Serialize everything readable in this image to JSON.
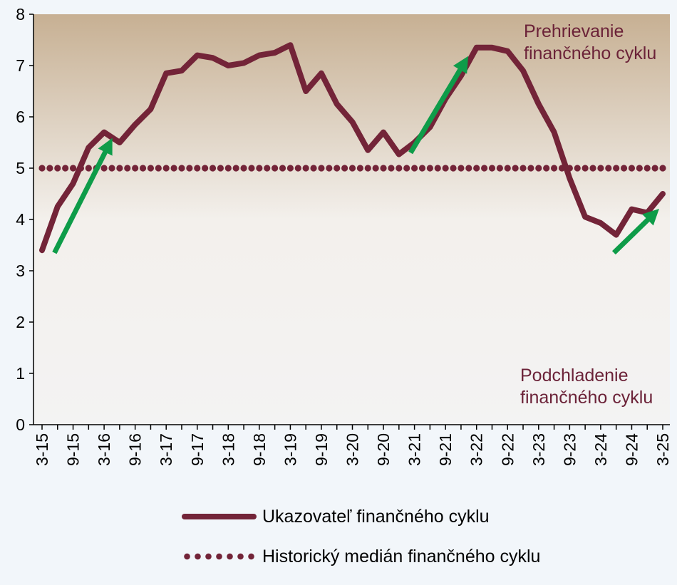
{
  "chart_data": {
    "type": "line",
    "categories": [
      "3-15",
      "6-15",
      "9-15",
      "12-15",
      "3-16",
      "6-16",
      "9-16",
      "12-16",
      "3-17",
      "6-17",
      "9-17",
      "12-17",
      "3-18",
      "6-18",
      "9-18",
      "12-18",
      "3-19",
      "6-19",
      "9-19",
      "12-19",
      "3-20",
      "6-20",
      "9-20",
      "12-20",
      "3-21",
      "6-21",
      "9-21",
      "12-21",
      "3-22",
      "6-22",
      "9-22",
      "12-22",
      "3-23",
      "6-23",
      "9-23",
      "12-23",
      "3-24",
      "6-24",
      "9-24",
      "12-24",
      "3-25"
    ],
    "x_tick_labels": [
      "3-15",
      "9-15",
      "3-16",
      "9-16",
      "3-17",
      "9-17",
      "3-18",
      "9-18",
      "3-19",
      "9-19",
      "3-20",
      "9-20",
      "3-21",
      "9-21",
      "3-22",
      "9-22",
      "3-23",
      "9-23",
      "3-24",
      "9-24",
      "3-25"
    ],
    "ylim": [
      0,
      8
    ],
    "y_ticks": [
      "0",
      "1",
      "2",
      "3",
      "4",
      "5",
      "6",
      "7",
      "8"
    ],
    "grid": false,
    "series": [
      {
        "name": "Ukazovateľ finančného cyklu",
        "style": "solid",
        "color": "#732438",
        "values": [
          3.4,
          4.25,
          4.7,
          5.4,
          5.7,
          5.5,
          5.85,
          6.15,
          6.85,
          6.9,
          7.2,
          7.15,
          7.0,
          7.05,
          7.2,
          7.25,
          7.4,
          6.5,
          6.85,
          6.25,
          5.9,
          5.35,
          5.7,
          5.27,
          5.5,
          5.8,
          6.35,
          6.8,
          7.35,
          7.35,
          7.28,
          6.9,
          6.25,
          5.7,
          4.8,
          4.05,
          3.93,
          3.7,
          4.2,
          4.13,
          4.5
        ]
      },
      {
        "name": "Historický medián finančného cyklu",
        "style": "dotted",
        "color": "#732438",
        "values": [
          5,
          5,
          5,
          5,
          5,
          5,
          5,
          5,
          5,
          5,
          5,
          5,
          5,
          5,
          5,
          5,
          5,
          5,
          5,
          5,
          5,
          5,
          5,
          5,
          5,
          5,
          5,
          5,
          5,
          5,
          5,
          5,
          5,
          5,
          5,
          5,
          5,
          5,
          5,
          5,
          5
        ]
      }
    ],
    "annotations": [
      {
        "name": "zone-top",
        "lines": [
          "Prehrievanie",
          "finančného cyklu"
        ]
      },
      {
        "name": "zone-bottom",
        "lines": [
          "Podchladenie",
          "finančného cyklu"
        ]
      }
    ],
    "arrows": [
      {
        "from": [
          0.8,
          3.35
        ],
        "to": [
          4.3,
          5.45
        ]
      },
      {
        "from": [
          23.75,
          5.3
        ],
        "to": [
          27.2,
          7.05
        ]
      },
      {
        "from": [
          36.85,
          3.35
        ],
        "to": [
          39.4,
          4.1
        ]
      }
    ],
    "colors": {
      "line": "#732438",
      "arrow": "#0e9c49",
      "bg_top": "#c7b093",
      "bg_bottom": "#f3f3f3",
      "page": "#f2f6fa"
    }
  },
  "legend": {
    "solid_label": "Ukazovateľ finančného cyklu",
    "dotted_label": "Historický medián finančného cyklu"
  }
}
